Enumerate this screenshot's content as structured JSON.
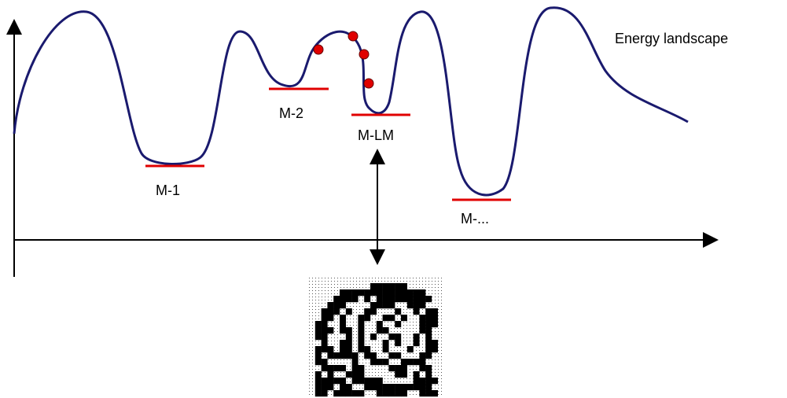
{
  "diagram": {
    "label": "Energy landscape",
    "minima": [
      "M-1",
      "M-2",
      "M-LM",
      "M-..."
    ]
  }
}
